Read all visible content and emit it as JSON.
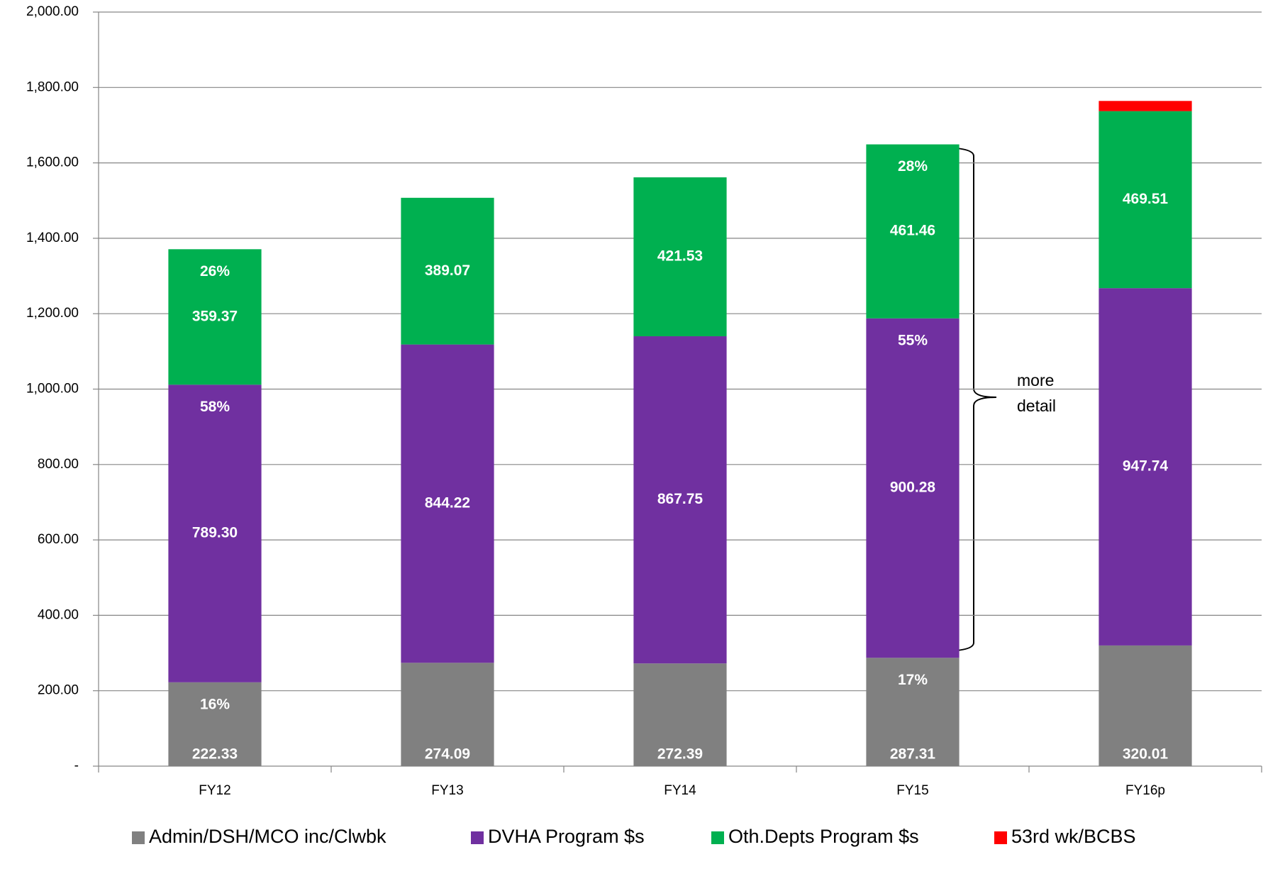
{
  "chart_data": {
    "type": "stacked_bar",
    "categories": [
      "FY12",
      "FY13",
      "FY14",
      "FY15",
      "FY16p"
    ],
    "series": [
      {
        "name": "Admin/DSH/MCO inc/Clwbk",
        "color": "#808080",
        "values": [
          222.33,
          274.09,
          272.39,
          287.31,
          320.01
        ],
        "value_labels": [
          "222.33",
          "274.09",
          "272.39",
          "287.31",
          "320.01"
        ],
        "percent_labels": [
          "16%",
          null,
          null,
          "17%",
          null
        ]
      },
      {
        "name": "DVHA Program $s",
        "color": "#7030a0",
        "values": [
          789.3,
          844.22,
          867.75,
          900.28,
          947.74
        ],
        "value_labels": [
          "789.30",
          "844.22",
          "867.75",
          "900.28",
          "947.74"
        ],
        "percent_labels": [
          "58%",
          null,
          null,
          "55%",
          null
        ]
      },
      {
        "name": "Oth.Depts Program $s",
        "color": "#00b050",
        "values": [
          359.37,
          389.07,
          421.53,
          461.46,
          469.51
        ],
        "value_labels": [
          "359.37",
          "389.07",
          "421.53",
          "461.46",
          "469.51"
        ],
        "percent_labels": [
          "26%",
          null,
          null,
          "28%",
          null
        ]
      },
      {
        "name": "53rd wk/BCBS",
        "color": "#ff0000",
        "values": [
          null,
          null,
          null,
          null,
          27
        ]
      }
    ],
    "ylim": [
      0,
      2000
    ],
    "yticks": [
      {
        "value": 0,
        "label": "-"
      },
      {
        "value": 200,
        "label": "200.00"
      },
      {
        "value": 400,
        "label": "400.00"
      },
      {
        "value": 600,
        "label": "600.00"
      },
      {
        "value": 800,
        "label": "800.00"
      },
      {
        "value": 1000,
        "label": "1,000.00"
      },
      {
        "value": 1200,
        "label": "1,200.00"
      },
      {
        "value": 1400,
        "label": "1,400.00"
      },
      {
        "value": 1600,
        "label": "1,600.00"
      },
      {
        "value": 1800,
        "label": "1,800.00"
      },
      {
        "value": 2000,
        "label": "2,000.00"
      }
    ],
    "grid": true,
    "legend": "bottom",
    "annotation": {
      "lines": [
        "more",
        "detail"
      ]
    }
  }
}
